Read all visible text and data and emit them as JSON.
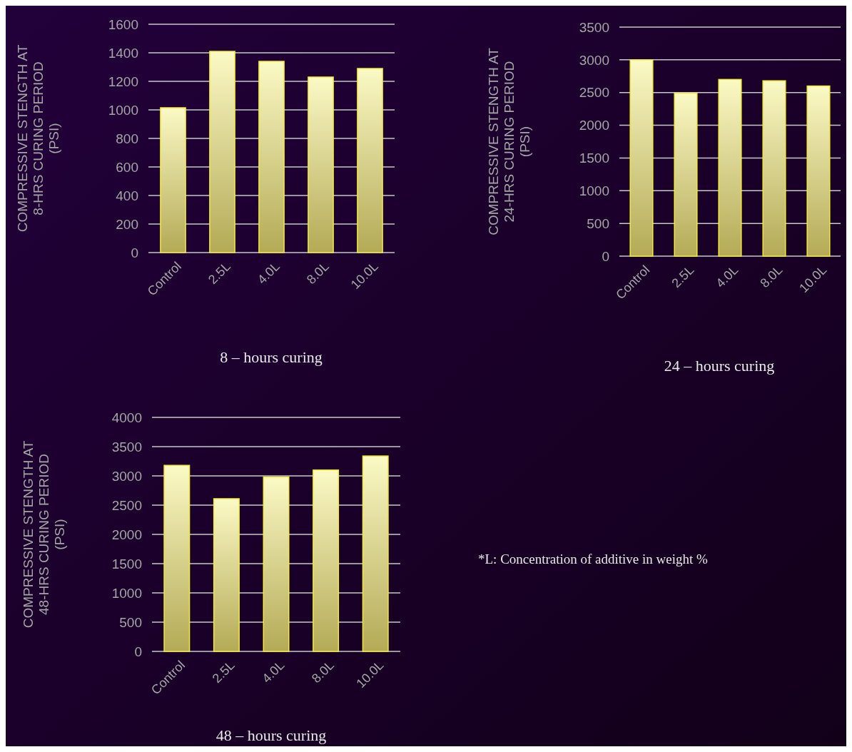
{
  "chart_data": [
    {
      "type": "bar",
      "title": "8 – hours curing",
      "ylabel": "COMPRESSIVE STENGTH AT 8-HRS CURING PERIOD (PSI)",
      "categories": [
        "Control",
        "2.5L",
        "4.0L",
        "8.0L",
        "10.0L"
      ],
      "values": [
        1015,
        1410,
        1340,
        1230,
        1290
      ],
      "color": "#f2ea3c",
      "ylim": [
        0,
        1600
      ],
      "yticks": [
        0,
        200,
        400,
        600,
        800,
        1000,
        1200,
        1400,
        1600
      ],
      "grid": true
    },
    {
      "type": "bar",
      "title": "24 – hours curing",
      "ylabel": "COMPRESSIVE STENGTH AT 24-HRS CURING PERIOD (PSI)",
      "categories": [
        "Control",
        "2.5L",
        "4.0L",
        "8.0L",
        "10.0L"
      ],
      "values": [
        3000,
        2490,
        2700,
        2680,
        2600
      ],
      "color": "#f2ea3c",
      "ylim": [
        0,
        3500
      ],
      "yticks": [
        0,
        500,
        1000,
        1500,
        2000,
        2500,
        3000,
        3500
      ],
      "grid": true
    },
    {
      "type": "bar",
      "title": "48 – hours curing",
      "ylabel": "COMPRESSIVE STENGTH AT 48-HRS CURING PERIOD (PSI)",
      "categories": [
        "Control",
        "2.5L",
        "4.0L",
        "8.0L",
        "10.0L"
      ],
      "values": [
        3180,
        2610,
        2980,
        3100,
        3340
      ],
      "color": "#f2ea3c",
      "ylim": [
        0,
        4000
      ],
      "yticks": [
        0,
        500,
        1000,
        1500,
        2000,
        2500,
        3000,
        3500,
        4000
      ],
      "grid": true,
      "annotations": [
        "*L: Concentration of additive in weight %"
      ]
    }
  ]
}
